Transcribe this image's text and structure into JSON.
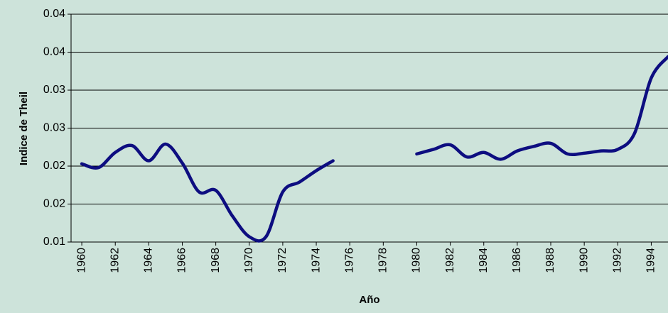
{
  "chart_data": {
    "type": "line",
    "y_label": "Indice de Theil",
    "x_label": "Año",
    "x": [
      1960,
      1961,
      1962,
      1963,
      1964,
      1965,
      1966,
      1967,
      1968,
      1969,
      1970,
      1971,
      1972,
      1973,
      1974,
      1975,
      1976,
      1977,
      1978,
      1979,
      1980,
      1981,
      1982,
      1983,
      1984,
      1985,
      1986,
      1987,
      1988,
      1989,
      1990,
      1991,
      1992,
      1993,
      1994,
      1995
    ],
    "values": [
      0.0203,
      0.0198,
      0.0218,
      0.0227,
      0.0207,
      0.0229,
      0.0204,
      0.0166,
      0.0168,
      0.0134,
      0.0107,
      0.0107,
      0.0166,
      0.0179,
      0.0194,
      0.0207,
      null,
      null,
      null,
      null,
      0.0216,
      0.0222,
      0.0228,
      0.0212,
      0.0218,
      0.0209,
      0.022,
      0.0226,
      0.023,
      0.0216,
      0.0217,
      0.022,
      0.0222,
      0.0243,
      0.0316,
      0.0344
    ],
    "color": "#0d0d80",
    "xlim": [
      1959.36,
      1995
    ],
    "xticks": [
      1960,
      1962,
      1964,
      1966,
      1968,
      1970,
      1972,
      1974,
      1976,
      1978,
      1980,
      1982,
      1984,
      1986,
      1988,
      1990,
      1992,
      1994
    ],
    "ylim": [
      0.01,
      0.04
    ],
    "yticks": [
      0.01,
      {
        "value": 0.015,
        "label": "0.02"
      },
      0.02,
      {
        "value": 0.025,
        "label": "0.03"
      },
      0.03,
      {
        "value": 0.035,
        "label": "0.04"
      },
      0.04
    ],
    "grid": true
  }
}
